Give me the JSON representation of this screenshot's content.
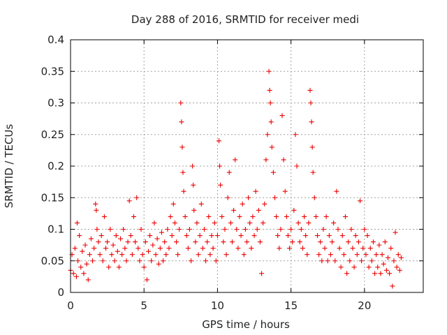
{
  "chart_data": {
    "type": "scatter",
    "title": "Day 288 of 2016, SRMTID for receiver medi",
    "xlabel": "GPS time / hours",
    "ylabel": "SRMTID / TECUs",
    "xlim": [
      0,
      24
    ],
    "ylim": [
      0,
      0.4
    ],
    "x_ticks": [
      0,
      5,
      10,
      15,
      20
    ],
    "y_ticks": [
      0,
      0.05,
      0.1,
      0.15,
      0.2,
      0.25,
      0.3,
      0.35,
      0.4
    ],
    "x_tick_labels": [
      "0",
      "5",
      "10",
      "15",
      "20"
    ],
    "y_tick_labels": [
      "0",
      "0.05",
      "0.1",
      "0.15",
      "0.2",
      "0.25",
      "0.3",
      "0.35",
      "0.4"
    ],
    "grid": true,
    "marker": "plus",
    "color": "#ee0000",
    "x_range_of_data": [
      0,
      22.5
    ],
    "series": [
      {
        "name": "SRMTID",
        "points": [
          [
            0.0,
            0.035
          ],
          [
            0.1,
            0.06
          ],
          [
            0.2,
            0.03
          ],
          [
            0.3,
            0.07
          ],
          [
            0.4,
            0.025
          ],
          [
            0.45,
            0.11
          ],
          [
            0.5,
            0.05
          ],
          [
            0.6,
            0.09
          ],
          [
            0.7,
            0.04
          ],
          [
            0.8,
            0.065
          ],
          [
            0.9,
            0.03
          ],
          [
            1.0,
            0.075
          ],
          [
            1.1,
            0.045
          ],
          [
            1.2,
            0.02
          ],
          [
            1.3,
            0.06
          ],
          [
            1.4,
            0.085
          ],
          [
            1.5,
            0.05
          ],
          [
            1.6,
            0.07
          ],
          [
            1.7,
            0.14
          ],
          [
            1.75,
            0.13
          ],
          [
            1.8,
            0.1
          ],
          [
            1.9,
            0.08
          ],
          [
            2.0,
            0.06
          ],
          [
            2.1,
            0.09
          ],
          [
            2.2,
            0.05
          ],
          [
            2.3,
            0.12
          ],
          [
            2.4,
            0.07
          ],
          [
            2.5,
            0.08
          ],
          [
            2.6,
            0.04
          ],
          [
            2.7,
            0.1
          ],
          [
            2.8,
            0.06
          ],
          [
            2.9,
            0.075
          ],
          [
            3.0,
            0.05
          ],
          [
            3.1,
            0.09
          ],
          [
            3.2,
            0.065
          ],
          [
            3.3,
            0.04
          ],
          [
            3.4,
            0.085
          ],
          [
            3.5,
            0.06
          ],
          [
            3.6,
            0.1
          ],
          [
            3.7,
            0.07
          ],
          [
            3.8,
            0.05
          ],
          [
            3.9,
            0.08
          ],
          [
            4.0,
            0.145
          ],
          [
            4.1,
            0.09
          ],
          [
            4.2,
            0.06
          ],
          [
            4.3,
            0.12
          ],
          [
            4.4,
            0.08
          ],
          [
            4.5,
            0.15
          ],
          [
            4.6,
            0.07
          ],
          [
            4.7,
            0.05
          ],
          [
            4.8,
            0.1
          ],
          [
            4.9,
            0.06
          ],
          [
            5.0,
            0.04
          ],
          [
            5.1,
            0.08
          ],
          [
            5.2,
            0.02
          ],
          [
            5.3,
            0.065
          ],
          [
            5.4,
            0.09
          ],
          [
            5.5,
            0.05
          ],
          [
            5.6,
            0.075
          ],
          [
            5.7,
            0.11
          ],
          [
            5.8,
            0.06
          ],
          [
            5.9,
            0.085
          ],
          [
            6.0,
            0.045
          ],
          [
            6.1,
            0.07
          ],
          [
            6.2,
            0.095
          ],
          [
            6.3,
            0.05
          ],
          [
            6.4,
            0.08
          ],
          [
            6.5,
            0.06
          ],
          [
            6.6,
            0.1
          ],
          [
            6.7,
            0.07
          ],
          [
            6.8,
            0.12
          ],
          [
            6.9,
            0.09
          ],
          [
            7.0,
            0.14
          ],
          [
            7.1,
            0.11
          ],
          [
            7.2,
            0.08
          ],
          [
            7.3,
            0.06
          ],
          [
            7.4,
            0.1
          ],
          [
            7.5,
            0.3
          ],
          [
            7.55,
            0.27
          ],
          [
            7.6,
            0.23
          ],
          [
            7.65,
            0.19
          ],
          [
            7.7,
            0.16
          ],
          [
            7.8,
            0.12
          ],
          [
            7.9,
            0.09
          ],
          [
            8.0,
            0.07
          ],
          [
            8.1,
            0.1
          ],
          [
            8.2,
            0.05
          ],
          [
            8.3,
            0.2
          ],
          [
            8.35,
            0.17
          ],
          [
            8.4,
            0.13
          ],
          [
            8.5,
            0.08
          ],
          [
            8.6,
            0.11
          ],
          [
            8.7,
            0.06
          ],
          [
            8.8,
            0.09
          ],
          [
            8.9,
            0.14
          ],
          [
            9.0,
            0.07
          ],
          [
            9.1,
            0.1
          ],
          [
            9.2,
            0.05
          ],
          [
            9.3,
            0.08
          ],
          [
            9.4,
            0.12
          ],
          [
            9.5,
            0.06
          ],
          [
            9.6,
            0.09
          ],
          [
            9.7,
            0.07
          ],
          [
            9.8,
            0.11
          ],
          [
            9.9,
            0.05
          ],
          [
            10.0,
            0.09
          ],
          [
            10.1,
            0.24
          ],
          [
            10.15,
            0.2
          ],
          [
            10.2,
            0.17
          ],
          [
            10.3,
            0.12
          ],
          [
            10.4,
            0.08
          ],
          [
            10.5,
            0.1
          ],
          [
            10.6,
            0.06
          ],
          [
            10.7,
            0.15
          ],
          [
            10.8,
            0.19
          ],
          [
            10.9,
            0.11
          ],
          [
            11.0,
            0.08
          ],
          [
            11.1,
            0.13
          ],
          [
            11.2,
            0.21
          ],
          [
            11.3,
            0.1
          ],
          [
            11.4,
            0.07
          ],
          [
            11.5,
            0.12
          ],
          [
            11.6,
            0.09
          ],
          [
            11.7,
            0.14
          ],
          [
            11.8,
            0.06
          ],
          [
            11.9,
            0.1
          ],
          [
            12.0,
            0.08
          ],
          [
            12.1,
            0.15
          ],
          [
            12.2,
            0.11
          ],
          [
            12.3,
            0.07
          ],
          [
            12.4,
            0.12
          ],
          [
            12.5,
            0.09
          ],
          [
            12.6,
            0.16
          ],
          [
            12.7,
            0.1
          ],
          [
            12.8,
            0.13
          ],
          [
            12.9,
            0.08
          ],
          [
            13.0,
            0.03
          ],
          [
            13.1,
            0.11
          ],
          [
            13.2,
            0.14
          ],
          [
            13.3,
            0.21
          ],
          [
            13.4,
            0.25
          ],
          [
            13.5,
            0.35
          ],
          [
            13.55,
            0.32
          ],
          [
            13.6,
            0.3
          ],
          [
            13.65,
            0.27
          ],
          [
            13.7,
            0.23
          ],
          [
            13.8,
            0.19
          ],
          [
            13.9,
            0.15
          ],
          [
            14.0,
            0.12
          ],
          [
            14.1,
            0.09
          ],
          [
            14.2,
            0.07
          ],
          [
            14.3,
            0.1
          ],
          [
            14.4,
            0.28
          ],
          [
            14.5,
            0.21
          ],
          [
            14.6,
            0.16
          ],
          [
            14.7,
            0.12
          ],
          [
            14.8,
            0.09
          ],
          [
            14.9,
            0.07
          ],
          [
            15.0,
            0.1
          ],
          [
            15.1,
            0.08
          ],
          [
            15.2,
            0.13
          ],
          [
            15.3,
            0.25
          ],
          [
            15.4,
            0.2
          ],
          [
            15.5,
            0.11
          ],
          [
            15.6,
            0.08
          ],
          [
            15.7,
            0.1
          ],
          [
            15.8,
            0.07
          ],
          [
            15.9,
            0.12
          ],
          [
            16.0,
            0.09
          ],
          [
            16.1,
            0.06
          ],
          [
            16.2,
            0.11
          ],
          [
            16.3,
            0.32
          ],
          [
            16.35,
            0.3
          ],
          [
            16.4,
            0.27
          ],
          [
            16.45,
            0.23
          ],
          [
            16.5,
            0.19
          ],
          [
            16.6,
            0.15
          ],
          [
            16.7,
            0.12
          ],
          [
            16.8,
            0.09
          ],
          [
            16.9,
            0.06
          ],
          [
            17.0,
            0.08
          ],
          [
            17.1,
            0.05
          ],
          [
            17.2,
            0.1
          ],
          [
            17.3,
            0.07
          ],
          [
            17.4,
            0.12
          ],
          [
            17.5,
            0.05
          ],
          [
            17.6,
            0.09
          ],
          [
            17.7,
            0.06
          ],
          [
            17.8,
            0.08
          ],
          [
            17.9,
            0.11
          ],
          [
            18.0,
            0.05
          ],
          [
            18.1,
            0.16
          ],
          [
            18.2,
            0.1
          ],
          [
            18.3,
            0.07
          ],
          [
            18.4,
            0.04
          ],
          [
            18.5,
            0.09
          ],
          [
            18.6,
            0.06
          ],
          [
            18.7,
            0.12
          ],
          [
            18.8,
            0.03
          ],
          [
            18.9,
            0.08
          ],
          [
            19.0,
            0.05
          ],
          [
            19.1,
            0.1
          ],
          [
            19.2,
            0.07
          ],
          [
            19.3,
            0.04
          ],
          [
            19.4,
            0.09
          ],
          [
            19.5,
            0.06
          ],
          [
            19.6,
            0.08
          ],
          [
            19.7,
            0.145
          ],
          [
            19.8,
            0.05
          ],
          [
            19.9,
            0.07
          ],
          [
            20.0,
            0.1
          ],
          [
            20.1,
            0.06
          ],
          [
            20.2,
            0.09
          ],
          [
            20.3,
            0.04
          ],
          [
            20.4,
            0.07
          ],
          [
            20.5,
            0.05
          ],
          [
            20.6,
            0.08
          ],
          [
            20.7,
            0.03
          ],
          [
            20.8,
            0.06
          ],
          [
            20.9,
            0.04
          ],
          [
            21.0,
            0.075
          ],
          [
            21.1,
            0.03
          ],
          [
            21.2,
            0.06
          ],
          [
            21.3,
            0.045
          ],
          [
            21.4,
            0.08
          ],
          [
            21.5,
            0.035
          ],
          [
            21.6,
            0.055
          ],
          [
            21.7,
            0.03
          ],
          [
            21.8,
            0.07
          ],
          [
            21.9,
            0.01
          ],
          [
            22.0,
            0.05
          ],
          [
            22.1,
            0.095
          ],
          [
            22.2,
            0.04
          ],
          [
            22.3,
            0.06
          ],
          [
            22.4,
            0.035
          ],
          [
            22.5,
            0.055
          ]
        ]
      }
    ]
  }
}
